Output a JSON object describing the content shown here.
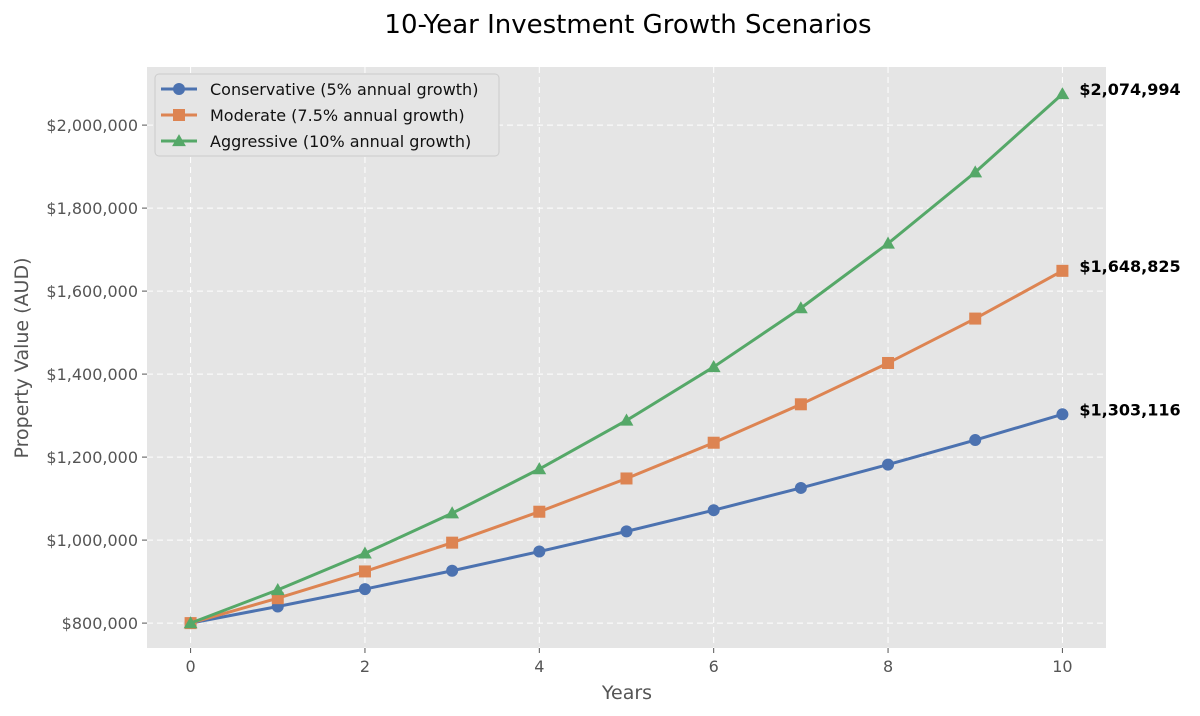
{
  "chart_data": {
    "type": "line",
    "title": "10-Year Investment Growth Scenarios",
    "xlabel": "Years",
    "ylabel": "Property Value (AUD)",
    "xlim": [
      -0.5,
      10.5
    ],
    "ylim": [
      740000,
      2140000
    ],
    "x_ticks": [
      0,
      2,
      4,
      6,
      8,
      10
    ],
    "x_tick_labels": [
      "0",
      "2",
      "4",
      "6",
      "8",
      "10"
    ],
    "y_ticks": [
      800000,
      1000000,
      1200000,
      1400000,
      1600000,
      1800000,
      2000000
    ],
    "y_tick_labels": [
      "$800,000",
      "$1,000,000",
      "$1,200,000",
      "$1,400,000",
      "$1,600,000",
      "$1,800,000",
      "$2,000,000"
    ],
    "grid": true,
    "legend_position": "top-left",
    "background_color": "#e5e5e5",
    "x": [
      0,
      1,
      2,
      3,
      4,
      5,
      6,
      7,
      8,
      9,
      10
    ],
    "series": [
      {
        "name": "Conservative (5% annual growth)",
        "color": "#4c72b0",
        "marker": "circle",
        "values": [
          800000,
          840000,
          882000,
          926100,
          972405,
          1021025,
          1072077,
          1125680,
          1181964,
          1241063,
          1303116
        ],
        "end_label": "$1,303,116"
      },
      {
        "name": "Moderate (7.5% annual growth)",
        "color": "#dd8452",
        "marker": "square",
        "values": [
          800000,
          860000,
          924500,
          993838,
          1068375,
          1148503,
          1234641,
          1327239,
          1426782,
          1533790,
          1648825
        ],
        "end_label": "$1,648,825"
      },
      {
        "name": "Aggressive (10% annual growth)",
        "color": "#55a868",
        "marker": "triangle",
        "values": [
          800000,
          880000,
          968000,
          1064800,
          1171280,
          1288408,
          1417249,
          1558974,
          1714871,
          1886358,
          2074994
        ],
        "end_label": "$2,074,994"
      }
    ]
  }
}
